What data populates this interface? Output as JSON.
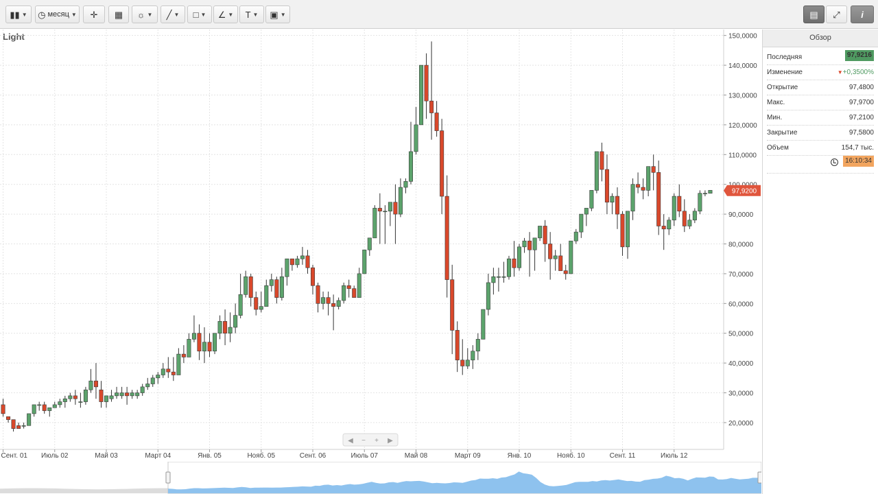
{
  "toolbar": {
    "period_label": "месяц",
    "text_tool": "T"
  },
  "chart_title": "Light",
  "price_badge": "97,9200",
  "panel": {
    "header": "Обзор",
    "rows": [
      {
        "label": "Последняя",
        "value": "97,9216"
      },
      {
        "label": "Изменение",
        "value": "+0,3500%"
      },
      {
        "label": "Открытие",
        "value": "97,4800"
      },
      {
        "label": "Макс.",
        "value": "97,9700"
      },
      {
        "label": "Мин.",
        "value": "97,2100"
      },
      {
        "label": "Закрытие",
        "value": "97,5800"
      },
      {
        "label": "Объем",
        "value": "154,7 тыс."
      }
    ],
    "time": "16:10:34"
  },
  "colors": {
    "up": "#5ca36c",
    "down": "#d9482b",
    "navigator": "#8ec2ee",
    "badge": "#e0553c"
  },
  "chart_data": {
    "type": "candlestick",
    "title": "Light",
    "y_ticks": [
      20,
      30,
      40,
      50,
      60,
      70,
      80,
      90,
      100,
      110,
      120,
      130,
      140,
      150
    ],
    "y_tick_labels": [
      "20,0000",
      "30,0000",
      "40,0000",
      "50,0000",
      "60,0000",
      "70,0000",
      "80,0000",
      "90,0000",
      "100,0000",
      "110,0000",
      "120,0000",
      "130,0000",
      "140,0000",
      "150,0000"
    ],
    "ylim": [
      11,
      152
    ],
    "x_ticks": [
      0,
      10,
      20,
      30,
      40,
      50,
      60,
      70,
      80,
      90,
      100,
      110,
      120,
      130
    ],
    "x_tick_labels": [
      "Сент. 01",
      "Июль 02",
      "Май 03",
      "Март 04",
      "Янв. 05",
      "Нояб. 05",
      "Сент. 06",
      "Июль 07",
      "Май 08",
      "Март 09",
      "Янв. 10",
      "Нояб. 10",
      "Сент. 11",
      "Июль 12"
    ],
    "xlim": [
      -0.6,
      139.6
    ],
    "last_price": 97.92,
    "grid": true,
    "candles": [
      [
        26,
        28,
        23,
        22
      ],
      [
        22,
        22,
        21,
        20
      ],
      [
        21,
        21,
        18,
        17
      ],
      [
        19,
        20,
        18,
        18
      ],
      [
        19,
        20,
        19,
        18
      ],
      [
        19,
        23,
        23,
        19
      ],
      [
        23,
        26,
        26,
        22
      ],
      [
        26,
        27,
        26,
        24
      ],
      [
        26,
        27,
        24,
        23
      ],
      [
        24,
        25,
        25,
        22
      ],
      [
        25,
        27,
        26,
        25
      ],
      [
        26,
        28,
        27,
        25
      ],
      [
        27,
        29,
        28,
        25
      ],
      [
        28,
        30,
        29,
        27
      ],
      [
        29,
        31,
        28,
        26
      ],
      [
        27,
        30,
        27,
        25
      ],
      [
        27,
        32,
        31,
        26
      ],
      [
        31,
        38,
        34,
        30
      ],
      [
        34,
        40,
        32,
        28
      ],
      [
        31,
        34,
        27,
        25
      ],
      [
        27,
        29,
        29,
        25
      ],
      [
        28,
        31,
        29,
        27
      ],
      [
        29,
        32,
        30,
        28
      ],
      [
        29,
        32,
        30,
        28
      ],
      [
        30,
        32,
        29,
        26
      ],
      [
        29,
        31,
        30,
        28
      ],
      [
        29,
        31,
        30,
        28
      ],
      [
        30,
        33,
        32,
        29
      ],
      [
        32,
        35,
        33,
        31
      ],
      [
        33,
        36,
        35,
        32
      ],
      [
        35,
        37,
        36,
        33
      ],
      [
        36,
        40,
        38,
        35
      ],
      [
        38,
        42,
        37,
        35
      ],
      [
        37,
        42,
        36,
        34
      ],
      [
        36,
        45,
        43,
        36
      ],
      [
        43,
        46,
        42,
        40
      ],
      [
        42,
        50,
        48,
        42
      ],
      [
        48,
        56,
        50,
        47
      ],
      [
        50,
        53,
        44,
        41
      ],
      [
        44,
        52,
        47,
        40
      ],
      [
        47,
        50,
        44,
        42
      ],
      [
        44,
        50,
        50,
        43
      ],
      [
        50,
        56,
        54,
        48
      ],
      [
        54,
        58,
        50,
        46
      ],
      [
        50,
        57,
        52,
        47
      ],
      [
        52,
        60,
        56,
        50
      ],
      [
        56,
        70,
        63,
        55
      ],
      [
        63,
        71,
        69,
        62
      ],
      [
        69,
        70,
        62,
        59
      ],
      [
        62,
        64,
        58,
        56
      ],
      [
        58,
        64,
        59,
        57
      ],
      [
        59,
        68,
        66,
        59
      ],
      [
        66,
        70,
        68,
        64
      ],
      [
        68,
        69,
        62,
        60
      ],
      [
        62,
        72,
        69,
        61
      ],
      [
        69,
        75,
        75,
        66
      ],
      [
        75,
        75,
        73,
        71
      ],
      [
        73,
        76,
        75,
        72
      ],
      [
        75,
        79,
        76,
        73
      ],
      [
        76,
        78,
        72,
        70
      ],
      [
        72,
        73,
        66,
        63
      ],
      [
        66,
        67,
        60,
        57
      ],
      [
        60,
        64,
        62,
        58
      ],
      [
        62,
        64,
        60,
        56
      ],
      [
        60,
        63,
        59,
        51
      ],
      [
        59,
        62,
        61,
        58
      ],
      [
        61,
        67,
        66,
        60
      ],
      [
        66,
        68,
        65,
        62
      ],
      [
        65,
        66,
        62,
        62
      ],
      [
        62,
        72,
        70,
        62
      ],
      [
        70,
        78,
        78,
        70
      ],
      [
        78,
        82,
        82,
        76
      ],
      [
        82,
        93,
        92,
        82
      ],
      [
        92,
        97,
        91,
        80
      ],
      [
        91,
        93,
        91,
        80
      ],
      [
        91,
        92,
        94,
        86
      ],
      [
        94,
        100,
        90,
        80
      ],
      [
        90,
        102,
        99,
        89
      ],
      [
        99,
        102,
        101,
        97
      ],
      [
        101,
        121,
        111,
        100
      ],
      [
        111,
        126,
        120,
        110
      ],
      [
        120,
        135,
        140,
        126
      ],
      [
        140,
        144,
        128,
        122
      ],
      [
        128,
        148,
        124,
        115
      ],
      [
        124,
        128,
        118,
        116
      ],
      [
        118,
        122,
        96,
        90
      ],
      [
        96,
        103,
        68,
        62
      ],
      [
        68,
        73,
        51,
        43
      ],
      [
        51,
        54,
        41,
        37
      ],
      [
        41,
        48,
        39,
        36
      ],
      [
        39,
        45,
        41,
        38
      ],
      [
        41,
        46,
        44,
        38
      ],
      [
        44,
        50,
        48,
        41
      ],
      [
        48,
        50,
        58,
        52
      ],
      [
        58,
        70,
        67,
        56
      ],
      [
        67,
        72,
        69,
        63
      ],
      [
        69,
        72,
        69,
        64
      ],
      [
        69,
        74,
        69,
        67
      ],
      [
        69,
        76,
        75,
        68
      ],
      [
        75,
        81,
        72,
        69
      ],
      [
        72,
        80,
        79,
        71
      ],
      [
        79,
        82,
        81,
        77
      ],
      [
        81,
        84,
        78,
        69
      ],
      [
        78,
        82,
        82,
        71
      ],
      [
        82,
        85,
        86,
        81
      ],
      [
        86,
        88,
        80,
        74
      ],
      [
        80,
        84,
        75,
        68
      ],
      [
        75,
        78,
        76,
        71
      ],
      [
        76,
        80,
        71,
        73
      ],
      [
        71,
        73,
        70,
        68
      ],
      [
        70,
        72,
        81,
        73
      ],
      [
        81,
        85,
        84,
        80
      ],
      [
        84,
        88,
        90,
        82
      ],
      [
        90,
        92,
        92,
        86
      ],
      [
        92,
        98,
        98,
        91
      ],
      [
        98,
        110,
        111,
        97
      ],
      [
        111,
        114,
        105,
        101
      ],
      [
        105,
        110,
        94,
        90
      ],
      [
        94,
        97,
        96,
        90
      ],
      [
        96,
        99,
        90,
        85
      ],
      [
        90,
        91,
        79,
        76
      ],
      [
        79,
        90,
        91,
        75
      ],
      [
        91,
        102,
        100,
        88
      ],
      [
        100,
        104,
        99,
        97
      ],
      [
        99,
        102,
        98,
        95
      ],
      [
        98,
        106,
        106,
        96
      ],
      [
        106,
        110,
        104,
        98
      ],
      [
        104,
        108,
        86,
        83
      ],
      [
        86,
        90,
        85,
        78
      ],
      [
        85,
        89,
        88,
        83
      ],
      [
        88,
        97,
        96,
        86
      ],
      [
        96,
        100,
        91,
        89
      ],
      [
        91,
        95,
        86,
        84
      ],
      [
        86,
        90,
        88,
        85
      ],
      [
        88,
        92,
        91,
        87
      ],
      [
        91,
        98,
        97,
        90
      ],
      [
        97,
        98,
        97,
        96
      ],
      [
        97,
        98,
        98,
        97
      ]
    ]
  }
}
